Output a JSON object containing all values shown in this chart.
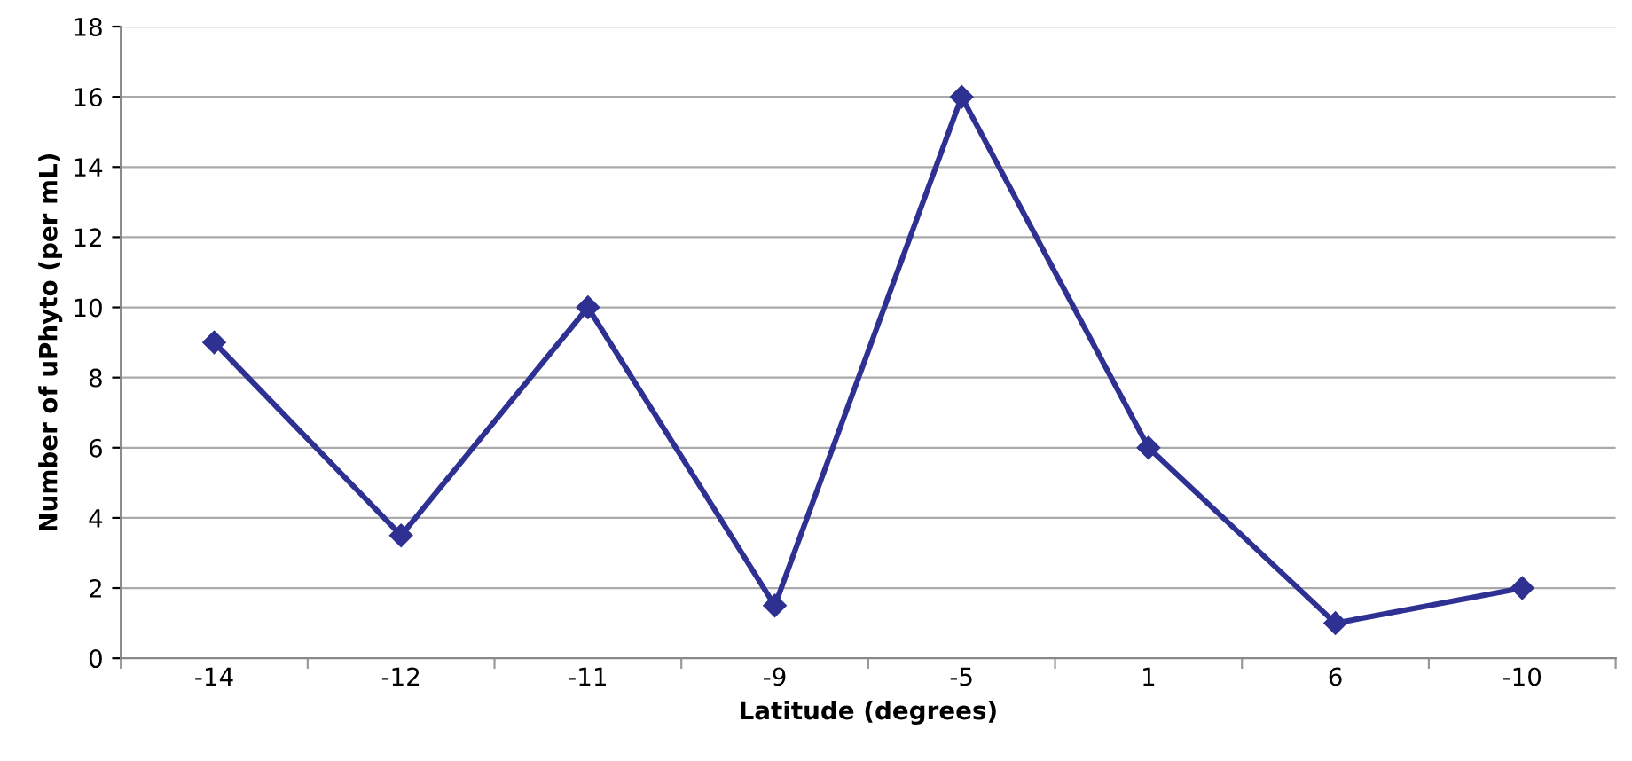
{
  "chart_data": {
    "type": "line",
    "xlabel": "Latitude (degrees)",
    "ylabel": "Number of uPhyto (per mL)",
    "categories": [
      "-14",
      "-12",
      "-11",
      "-9",
      "-5",
      "1",
      "6",
      "-10"
    ],
    "series": [
      {
        "color": "#2e3192",
        "values": [
          9,
          3.5,
          10,
          1.5,
          16,
          6,
          1,
          2
        ]
      }
    ],
    "ylim": [
      0,
      18
    ],
    "yticks": [
      0,
      2,
      4,
      6,
      8,
      10,
      12,
      14,
      16,
      18
    ],
    "grid": "y",
    "marker": "diamond",
    "line_style": "solid",
    "legend": false
  }
}
